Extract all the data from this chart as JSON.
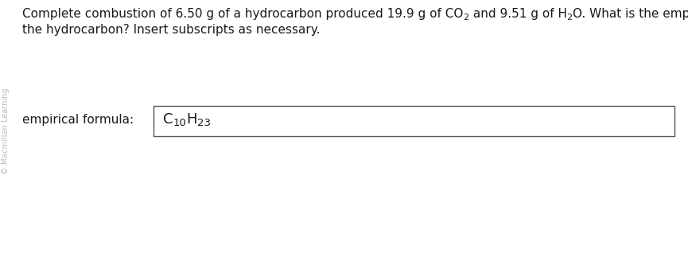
{
  "background_color": "#ffffff",
  "watermark_text": "© Macmillan Learning",
  "watermark_color": "#bbbbbb",
  "q_part1": "Complete combustion of 6.50 g of a hydrocarbon produced 19.9 g of CO",
  "q_sub1": "2",
  "q_part2": " and 9.51 g of H",
  "q_sub2": "2",
  "q_part3": "O. What is the empirical formula for",
  "q_line2": "the hydrocarbon? Insert subscripts as necessary.",
  "label_text": "empirical formula:",
  "formula_C": "C",
  "formula_10": "10",
  "formula_H": "H",
  "formula_23": "23",
  "text_color": "#1a1a1a",
  "box_edge_color": "#555555",
  "font_size_q": 11.0,
  "font_size_sub": 8.0,
  "font_size_label": 11.0,
  "font_size_formula_main": 13.0,
  "font_size_formula_sub": 9.5,
  "watermark_fontsize": 7.0,
  "fig_width": 8.65,
  "fig_height": 3.29,
  "dpi": 100
}
